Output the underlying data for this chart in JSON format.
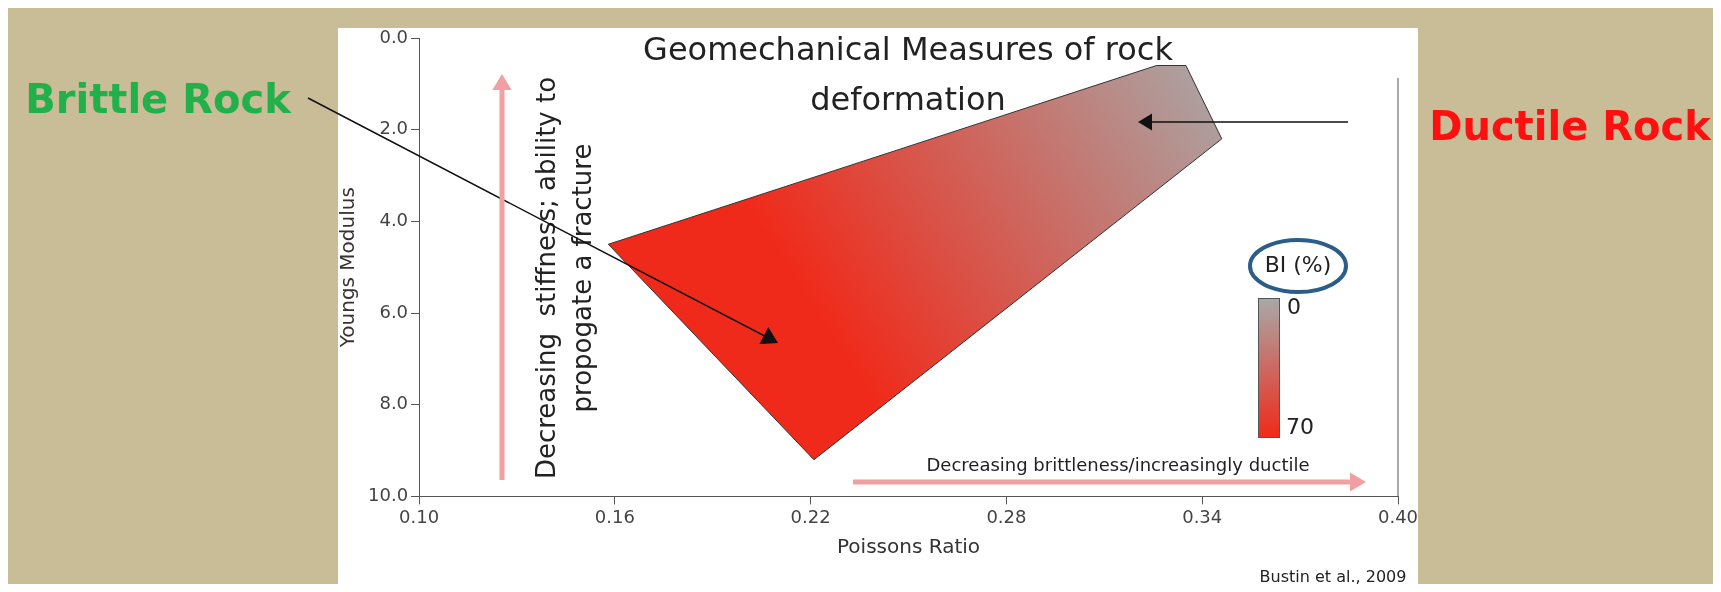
{
  "chart_data": {
    "type": "area",
    "title": "Geomechanical Measures of rock deformation",
    "xlabel": "Poissons Ratio",
    "ylabel": "Youngs Modulus",
    "series": [
      {
        "color": "#f02a1a",
        "x": [
          0.158,
          0.326,
          0.335,
          0.346,
          0.221,
          0.158
        ],
        "values": [
          4.5,
          0.6,
          0.6,
          2.2,
          9.2,
          4.5
        ]
      }
    ],
    "xlim": [
      0.1,
      0.4
    ],
    "xticks": [
      {
        "value": 0.1,
        "label": "0.10"
      },
      {
        "value": 0.16,
        "label": "0.16"
      },
      {
        "value": 0.22,
        "label": "0.22"
      },
      {
        "value": 0.28,
        "label": "0.28"
      },
      {
        "value": 0.34,
        "label": "0.34"
      },
      {
        "value": 0.4,
        "label": "0.40"
      }
    ],
    "ylim": [
      10,
      0
    ],
    "yticks": [
      {
        "value": 0,
        "label": "0.0"
      },
      {
        "value": 2,
        "label": "2.0"
      },
      {
        "value": 4,
        "label": "4.0"
      },
      {
        "value": 6,
        "label": "6.0"
      },
      {
        "value": 8,
        "label": "8.0"
      },
      {
        "value": 10,
        "label": "10.0"
      }
    ],
    "grid": false,
    "legend": false,
    "annotations": [
      "Brittle Rock",
      "Ductile Rock",
      "Decreasing  stiffness; ability to propogate a fracture",
      "Decreasing brittleness/increasingly ductile",
      "Bustin et al., 2009",
      "BI (%)",
      "0",
      "70"
    ]
  }
}
